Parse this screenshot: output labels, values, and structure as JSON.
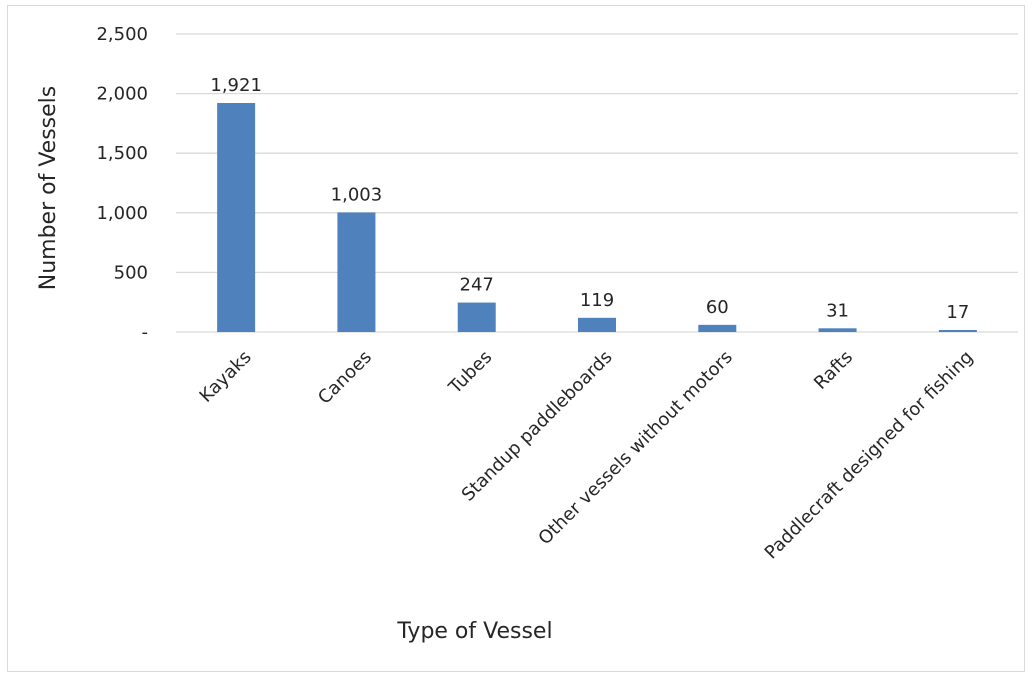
{
  "chart_data": {
    "type": "bar",
    "title": "",
    "xlabel": "Type of Vessel",
    "ylabel": "Number of Vessels",
    "categories": [
      "Kayaks",
      "Canoes",
      "Tubes",
      "Standup paddleboards",
      "Other vessels without motors",
      "Rafts",
      "Paddlecraft designed for fishing"
    ],
    "values": [
      1921,
      1003,
      247,
      119,
      60,
      31,
      17
    ],
    "data_labels": [
      "1,921",
      "1,003",
      "247",
      "119",
      "60",
      "31",
      "17"
    ],
    "ylim": [
      0,
      2500
    ],
    "yticks": [
      0,
      500,
      1000,
      1500,
      2000,
      2500
    ],
    "ytick_labels": [
      "-",
      "500",
      "1,000",
      "1,500",
      "2,000",
      "2,500"
    ],
    "grid": true,
    "legend": "none",
    "bar_color": "#4f81bd",
    "grid_color": "#d9d9d9"
  }
}
